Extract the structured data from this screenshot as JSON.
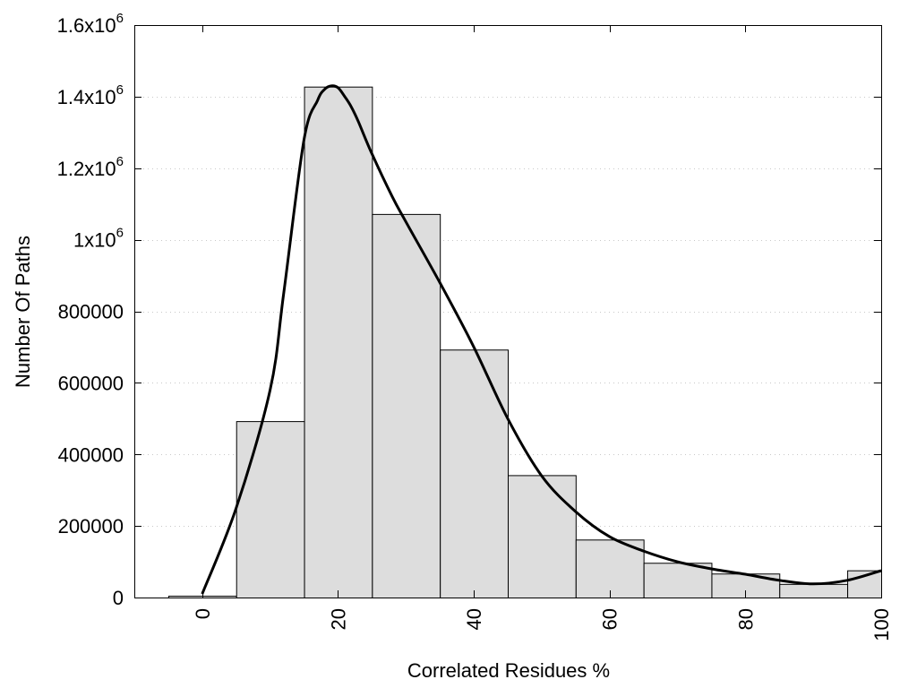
{
  "chart_data": {
    "type": "bar",
    "title": "",
    "xlabel": "Correlated Residues %",
    "ylabel": "Number Of Paths",
    "xlim": [
      -10,
      100
    ],
    "ylim": [
      0,
      1600000
    ],
    "grid": "horizontal dotted",
    "bar_width": 10,
    "x": [
      0,
      10,
      20,
      30,
      40,
      50,
      60,
      70,
      80,
      90,
      100
    ],
    "values": [
      5000,
      493000,
      1428000,
      1072000,
      693000,
      342000,
      162000,
      97000,
      67000,
      38000,
      76000
    ],
    "x_ticks": [
      {
        "value": 0,
        "label": "0"
      },
      {
        "value": 20,
        "label": "20"
      },
      {
        "value": 40,
        "label": "40"
      },
      {
        "value": 60,
        "label": "60"
      },
      {
        "value": 80,
        "label": "80"
      },
      {
        "value": 100,
        "label": "100"
      }
    ],
    "y_ticks": [
      {
        "value": 0,
        "label": "0",
        "exp": ""
      },
      {
        "value": 200000,
        "label": "200000",
        "exp": ""
      },
      {
        "value": 400000,
        "label": "400000",
        "exp": ""
      },
      {
        "value": 600000,
        "label": "600000",
        "exp": ""
      },
      {
        "value": 800000,
        "label": "800000",
        "exp": ""
      },
      {
        "value": 1000000,
        "label": "1x10",
        "exp": "6"
      },
      {
        "value": 1200000,
        "label": "1.2x10",
        "exp": "6"
      },
      {
        "value": 1400000,
        "label": "1.4x10",
        "exp": "6"
      },
      {
        "value": 1600000,
        "label": "1.6x10",
        "exp": "6"
      }
    ],
    "curve": {
      "x": [
        0,
        5,
        10,
        12,
        15,
        17,
        18,
        19,
        20,
        21,
        22,
        23,
        25,
        28,
        30,
        35,
        40,
        45,
        50,
        55,
        60,
        65,
        70,
        75,
        80,
        85,
        90,
        95,
        100
      ],
      "y": [
        10000,
        250000,
        580000,
        850000,
        1280000,
        1390000,
        1420000,
        1430000,
        1425000,
        1400000,
        1370000,
        1330000,
        1240000,
        1120000,
        1050000,
        880000,
        700000,
        500000,
        340000,
        240000,
        170000,
        130000,
        100000,
        80000,
        65000,
        48000,
        38000,
        48000,
        75000
      ]
    },
    "colors": {
      "bar_fill": "#dddddd",
      "bar_stroke": "#000000",
      "curve": "#000000"
    }
  }
}
